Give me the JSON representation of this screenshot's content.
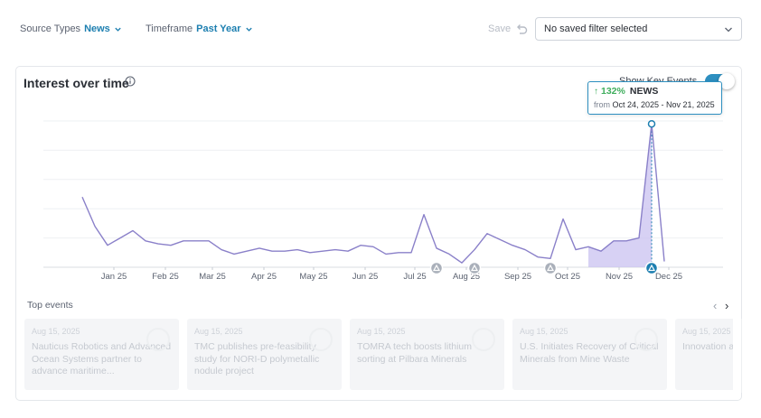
{
  "filters": {
    "source_types_label": "Source Types",
    "source_types_value": "News",
    "timeframe_label": "Timeframe",
    "timeframe_value": "Past Year",
    "save_label": "Save",
    "saved_filter_placeholder": "No saved filter selected"
  },
  "card": {
    "title": "Interest over time",
    "show_key_events_label": "Show Key Events",
    "show_key_events_on": true
  },
  "tooltip": {
    "change": "132%",
    "source": "NEWS",
    "from_label": "from",
    "range": "Oct 24, 2025 - Nov 21, 2025"
  },
  "chart_data": {
    "type": "line",
    "x_tick_labels": [
      "Jan 25",
      "Feb 25",
      "Mar 25",
      "Apr 25",
      "May 25",
      "Jun 25",
      "Jul 25",
      "Aug 25",
      "Sep 25",
      "Oct 25",
      "Nov 25",
      "Dec 25"
    ],
    "values": [
      48,
      28,
      15,
      20,
      25,
      18,
      16,
      15,
      18,
      18,
      18,
      12,
      9,
      11,
      13,
      11,
      11,
      12,
      10,
      11,
      12,
      11,
      15,
      14,
      9,
      10,
      10,
      36,
      13,
      9,
      3,
      12,
      23,
      19,
      15,
      12,
      7,
      6,
      33,
      12,
      14,
      11,
      18,
      18,
      20,
      98,
      4
    ],
    "highlight_range_index": [
      40,
      44
    ],
    "peak_index": 45,
    "ylim": [
      0,
      100
    ],
    "grid": true,
    "key_event_markers": [
      {
        "index": 28,
        "color": "#aab0ba"
      },
      {
        "index": 31,
        "color": "#aab0ba"
      },
      {
        "index": 37,
        "color": "#aab0ba"
      },
      {
        "index": 45,
        "color": "#1d7fb0"
      }
    ],
    "line_color": "#8a80c9",
    "fill_color": "#c9c2f0",
    "peak_color": "#1d7fb0"
  },
  "top_events": {
    "label": "Top events",
    "items": [
      {
        "date": "Aug 15, 2025",
        "title": "Nauticus Robotics and Advanced Ocean Systems partner to advance maritime..."
      },
      {
        "date": "Aug 15, 2025",
        "title": "TMC publishes pre-feasibility study for NORI-D polymetallic nodule project"
      },
      {
        "date": "Aug 15, 2025",
        "title": "TOMRA tech boosts lithium sorting at Pilbara Minerals"
      },
      {
        "date": "Aug 15, 2025",
        "title": "U.S. Initiates Recovery of Critical Minerals from Mine Waste"
      },
      {
        "date": "Aug 15, 2025",
        "title": "Innovation a Screening a"
      }
    ]
  }
}
